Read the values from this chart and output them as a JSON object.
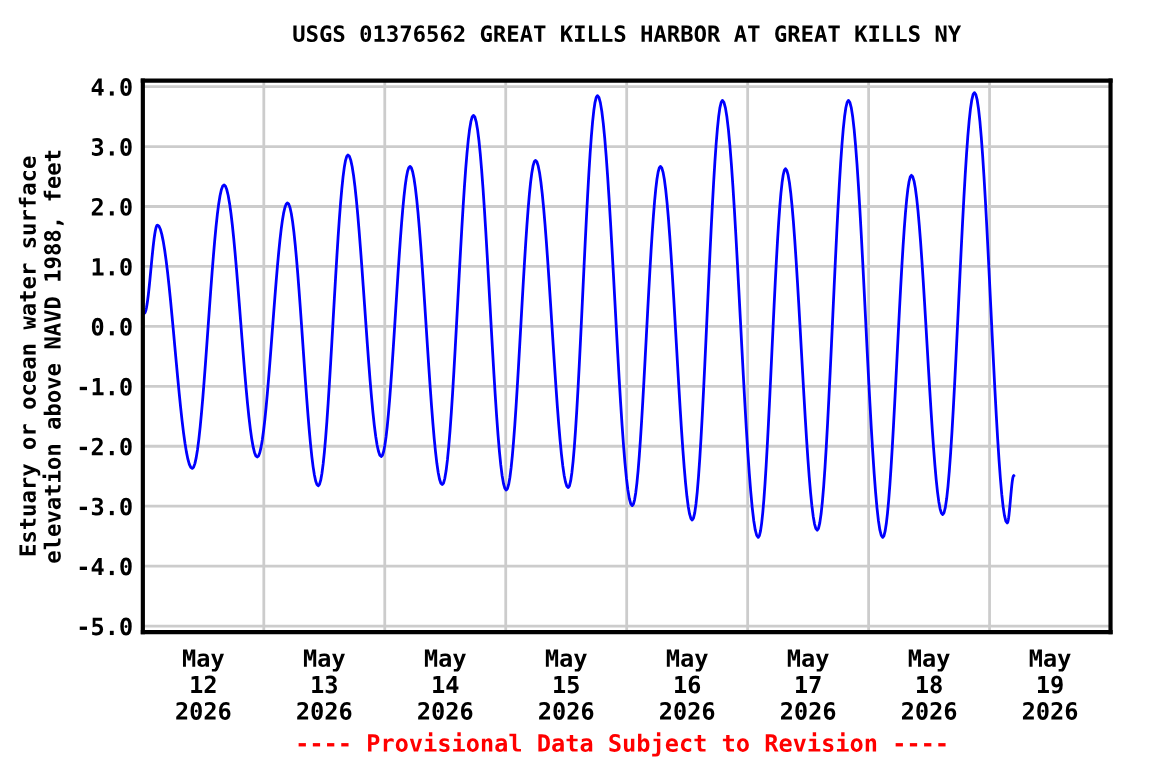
{
  "chart_data": {
    "type": "line",
    "title": "USGS 01376562 GREAT KILLS HARBOR AT GREAT KILLS NY",
    "ylabel": "Estuary or ocean water surface\nelevation above NAVD 1988, feet",
    "annotations": [
      "---- Provisional Data Subject to Revision ----"
    ],
    "x": [
      "2026-05-12T00:18",
      "2026-05-12T02:54",
      "2026-05-12T09:48",
      "2026-05-12T16:06",
      "2026-05-12T22:42",
      "2026-05-13T04:42",
      "2026-05-13T10:48",
      "2026-05-13T16:42",
      "2026-05-13T23:18",
      "2026-05-14T05:00",
      "2026-05-14T11:24",
      "2026-05-14T17:36",
      "2026-05-15T00:06",
      "2026-05-15T05:54",
      "2026-05-15T12:24",
      "2026-05-15T18:12",
      "2026-05-16T01:06",
      "2026-05-16T06:42",
      "2026-05-16T13:00",
      "2026-05-16T19:00",
      "2026-05-17T02:06",
      "2026-05-17T07:30",
      "2026-05-17T13:48",
      "2026-05-17T20:00",
      "2026-05-18T02:48",
      "2026-05-18T08:30",
      "2026-05-18T14:42",
      "2026-05-18T21:00",
      "2026-05-19T03:30",
      "2026-05-19T04:48"
    ],
    "series": [
      {
        "color": "#0000ff",
        "values": [
          0.22,
          1.69,
          -2.37,
          2.36,
          -2.18,
          2.06,
          -2.66,
          2.86,
          -2.17,
          2.67,
          -2.64,
          3.52,
          -2.73,
          2.77,
          -2.69,
          3.85,
          -2.99,
          2.67,
          -3.23,
          3.77,
          -3.52,
          2.63,
          -3.4,
          3.77,
          -3.52,
          2.52,
          -3.14,
          3.9,
          -3.28,
          -2.49
        ]
      }
    ],
    "xlim": [
      "2026-05-12",
      "2026-05-20"
    ],
    "xticks": [
      {
        "value": "2026-05-12T12:00",
        "label": "May\n12\n2026"
      },
      {
        "value": "2026-05-13T12:00",
        "label": "May\n13\n2026"
      },
      {
        "value": "2026-05-14T12:00",
        "label": "May\n14\n2026"
      },
      {
        "value": "2026-05-15T12:00",
        "label": "May\n15\n2026"
      },
      {
        "value": "2026-05-16T12:00",
        "label": "May\n16\n2026"
      },
      {
        "value": "2026-05-17T12:00",
        "label": "May\n17\n2026"
      },
      {
        "value": "2026-05-18T12:00",
        "label": "May\n18\n2026"
      },
      {
        "value": "2026-05-19T12:00",
        "label": "May\n19\n2026"
      },
      {
        "value": "2026-05-13",
        "label": null
      },
      {
        "value": "2026-05-14",
        "label": null
      },
      {
        "value": "2026-05-15",
        "label": null
      },
      {
        "value": "2026-05-16",
        "label": null
      },
      {
        "value": "2026-05-17",
        "label": null
      },
      {
        "value": "2026-05-18",
        "label": null
      },
      {
        "value": "2026-05-19",
        "label": null
      }
    ],
    "ylim": [
      -5.1,
      4.1
    ],
    "yticks": [
      {
        "value": -5,
        "label": "-5.0"
      },
      {
        "value": -4,
        "label": "-4.0"
      },
      {
        "value": -3,
        "label": "-3.0"
      },
      {
        "value": -2,
        "label": "-2.0"
      },
      {
        "value": -1,
        "label": "-1.0"
      },
      {
        "value": 0,
        "label": "0.0"
      },
      {
        "value": 1,
        "label": "1.0"
      },
      {
        "value": 2,
        "label": "2.0"
      },
      {
        "value": 3,
        "label": "3.0"
      },
      {
        "value": 4,
        "label": "4.0"
      }
    ],
    "grid": true,
    "marker": "none",
    "line_style": "solid"
  }
}
